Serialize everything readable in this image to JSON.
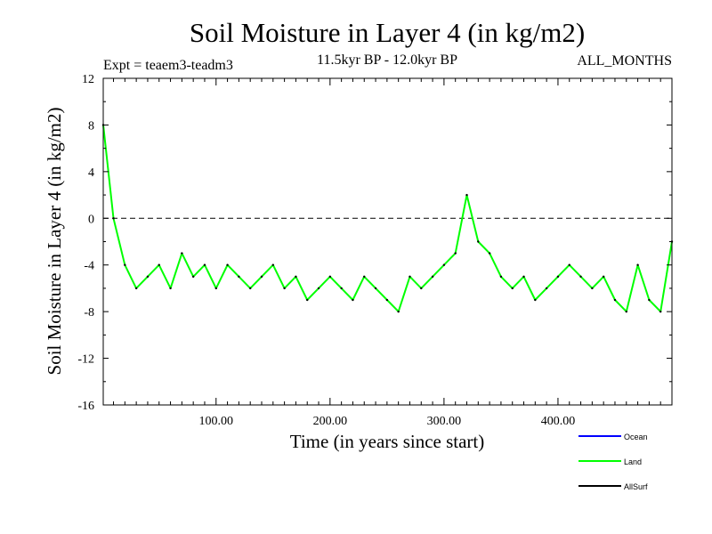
{
  "chart_data": {
    "type": "line",
    "title": "Soil Moisture in Layer 4 (in kg/m2)",
    "subtitle": "11.5kyr BP - 12.0kyr BP",
    "experiment": "Expt = teaem3-teadm3",
    "period": "ALL_MONTHS",
    "xlabel": "Time (in years since start)",
    "ylabel": "Soil Moisture in Layer 4 (in kg/m2)",
    "xlim": [
      1,
      500
    ],
    "ylim": [
      -16,
      12
    ],
    "x_ticks": [
      100,
      200,
      300,
      400
    ],
    "x_tick_labels": [
      "100.00",
      "200.00",
      "300.00",
      "400.00"
    ],
    "y_ticks": [
      12,
      8,
      4,
      0,
      -4,
      -8,
      -12,
      -16
    ],
    "y_tick_labels": [
      "12",
      "8",
      "4",
      "0",
      "-4",
      "-8",
      "-12",
      "-16"
    ],
    "reference_line": 0,
    "legend": [
      {
        "name": "Ocean",
        "color": "#0000ff"
      },
      {
        "name": "Land",
        "color": "#00ff00"
      },
      {
        "name": "AllSurf",
        "color": "#000000"
      }
    ],
    "series": [
      {
        "name": "Land",
        "color": "#00ff00",
        "note": "~500 annual values, approximated at 10-year resolution",
        "x": [
          1,
          10,
          20,
          30,
          40,
          50,
          60,
          70,
          80,
          90,
          100,
          110,
          120,
          130,
          140,
          150,
          160,
          170,
          180,
          190,
          200,
          210,
          220,
          230,
          240,
          250,
          260,
          270,
          280,
          290,
          300,
          310,
          320,
          330,
          340,
          350,
          360,
          370,
          380,
          390,
          400,
          410,
          420,
          430,
          440,
          450,
          460,
          470,
          480,
          490,
          500
        ],
        "values": [
          8,
          0,
          -4,
          -6,
          -5,
          -4,
          -6,
          -3,
          -5,
          -4,
          -6,
          -4,
          -5,
          -6,
          -5,
          -4,
          -6,
          -5,
          -7,
          -6,
          -5,
          -6,
          -7,
          -5,
          -6,
          -7,
          -8,
          -5,
          -6,
          -5,
          -4,
          -3,
          2,
          -2,
          -3,
          -5,
          -6,
          -5,
          -7,
          -6,
          -5,
          -4,
          -5,
          -6,
          -5,
          -7,
          -8,
          -4,
          -7,
          -8,
          -2
        ]
      }
    ]
  }
}
